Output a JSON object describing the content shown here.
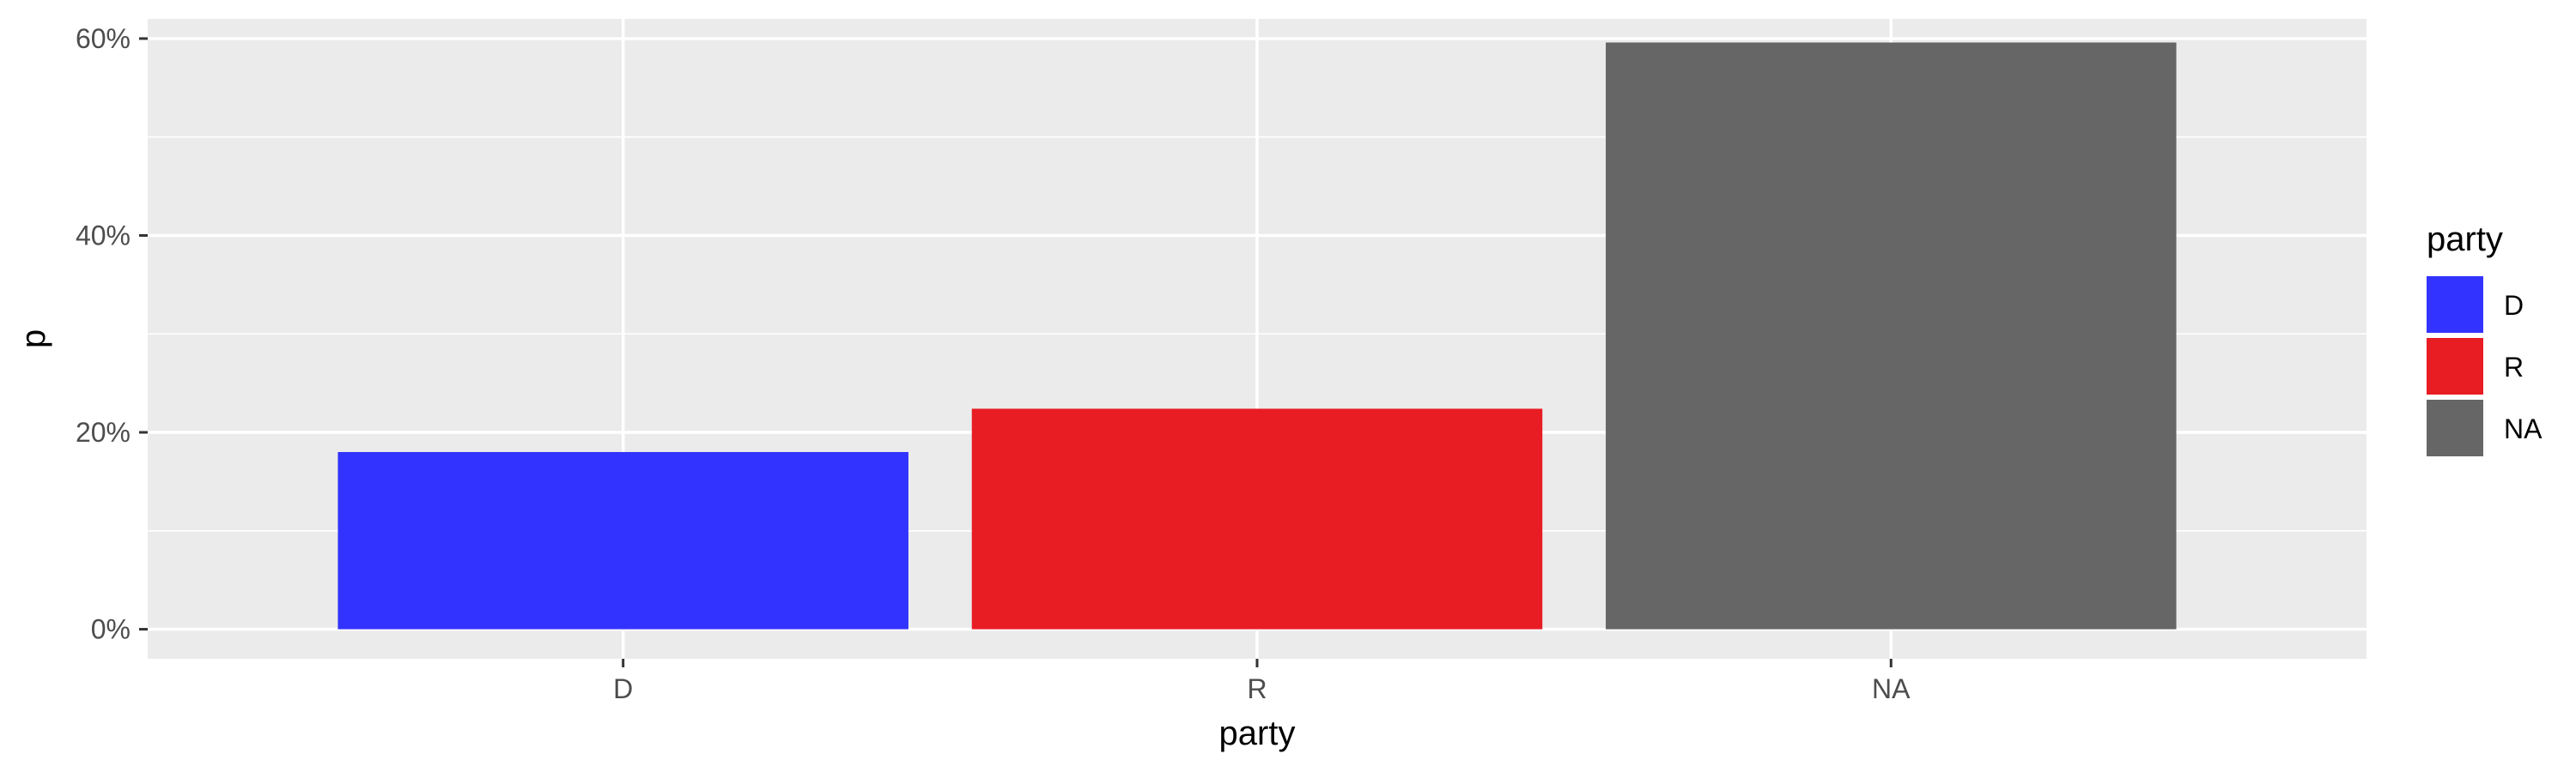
{
  "chart_data": {
    "type": "bar",
    "categories": [
      "D",
      "R",
      "NA"
    ],
    "values": [
      18,
      22.4,
      59.6
    ],
    "colors": [
      "#3333ff",
      "#e81c23",
      "#666666"
    ],
    "xlabel": "party",
    "ylabel": "p",
    "ylim": [
      -3,
      62
    ],
    "yticks": [
      0,
      20,
      40,
      60
    ],
    "ytick_labels": [
      "0%",
      "20%",
      "40%",
      "60%"
    ],
    "grid": true,
    "legend": {
      "title": "party",
      "placement": "right",
      "items": [
        {
          "label": "D",
          "color": "#3333ff"
        },
        {
          "label": "R",
          "color": "#e81c23"
        },
        {
          "label": "NA",
          "color": "#666666"
        }
      ]
    },
    "panel_background": "#ebebeb",
    "grid_color": "#ffffff"
  }
}
